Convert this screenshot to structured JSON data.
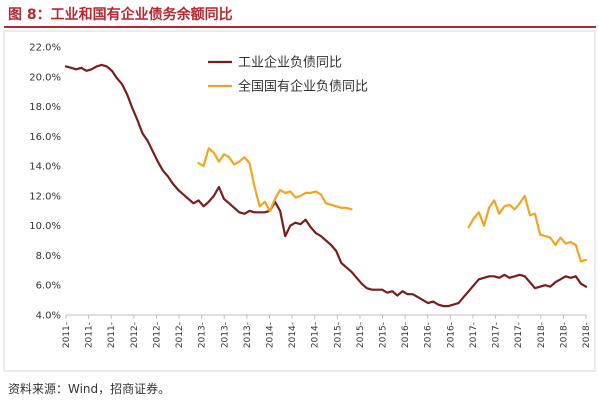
{
  "figure": {
    "title": "图 8：工业和国有企业债务余额同比",
    "source": "资料来源：Wind，招商证券。"
  },
  "chart_data": {
    "type": "line",
    "yticks": [
      "22.0%",
      "20.0%",
      "18.0%",
      "16.0%",
      "14.0%",
      "12.0%",
      "10.0%",
      "8.0%",
      "6.0%",
      "4.0%"
    ],
    "ylim": [
      4.0,
      22.0
    ],
    "xticks": [
      "2011-",
      "2011-",
      "2011-",
      "2012-",
      "2012-",
      "2012-",
      "2013-",
      "2013-",
      "2013-",
      "2014-",
      "2014-",
      "2014-",
      "2015-",
      "2015-",
      "2015-",
      "2016-",
      "2016-",
      "2016-",
      "2017-",
      "2017-",
      "2017-",
      "2018-",
      "2018-",
      "2018-"
    ],
    "legend_position": "top-center",
    "series": [
      {
        "name": "工业企业负债同比",
        "color": "#7b1c1c",
        "start": 0,
        "values": [
          20.7,
          20.6,
          20.5,
          20.6,
          20.4,
          20.5,
          20.7,
          20.8,
          20.7,
          20.4,
          19.9,
          19.5,
          18.8,
          17.9,
          17.1,
          16.2,
          15.7,
          15.0,
          14.3,
          13.7,
          13.3,
          12.8,
          12.4,
          12.1,
          11.8,
          11.5,
          11.7,
          11.3,
          11.6,
          12.0,
          12.6,
          11.8,
          11.5,
          11.2,
          10.9,
          10.8,
          11.0,
          10.9,
          10.9,
          10.9,
          11.0,
          11.6,
          11.0,
          9.3,
          10.0,
          10.2,
          10.1,
          10.4,
          9.9,
          9.5,
          9.3,
          9.0,
          8.7,
          8.3,
          7.5,
          7.2,
          6.9,
          6.5,
          6.1,
          5.8,
          5.7,
          5.7,
          5.7,
          5.5,
          5.6,
          5.3,
          5.6,
          5.4,
          5.4,
          5.2,
          5.0,
          4.8,
          4.9,
          4.7,
          4.6,
          4.6,
          4.7,
          4.8,
          5.2,
          5.6,
          6.0,
          6.4,
          6.5,
          6.6,
          6.6,
          6.5,
          6.7,
          6.5,
          6.6,
          6.7,
          6.6,
          6.2,
          5.8,
          5.9,
          6.0,
          5.9,
          6.2,
          6.4,
          6.6,
          6.5,
          6.6,
          6.1,
          5.9
        ]
      },
      {
        "name": "全国国有企业负债同比",
        "color": "#f2a520",
        "start": 26,
        "values": [
          14.2,
          14.0,
          15.2,
          14.9,
          14.3,
          14.8,
          14.6,
          14.1,
          14.3,
          14.6,
          14.2,
          12.6,
          11.3,
          11.6,
          11.0,
          11.8,
          12.4,
          12.2,
          12.3,
          11.9,
          12.0,
          12.2,
          12.2,
          12.3,
          12.1,
          11.5,
          11.4,
          11.3,
          11.2,
          11.2,
          11.1,
          null,
          null,
          null,
          null,
          null,
          null,
          null,
          null,
          null,
          null,
          null,
          null,
          null,
          null,
          null,
          null,
          null,
          null,
          null,
          null,
          null,
          null,
          9.9,
          10.5,
          10.9,
          10.0,
          11.2,
          11.7,
          10.8,
          11.3,
          11.4,
          11.1,
          11.5,
          12.0,
          10.7,
          10.8,
          9.4,
          9.3,
          9.2,
          8.7,
          9.2,
          8.8,
          8.9,
          8.7,
          7.6,
          7.7
        ]
      }
    ]
  }
}
